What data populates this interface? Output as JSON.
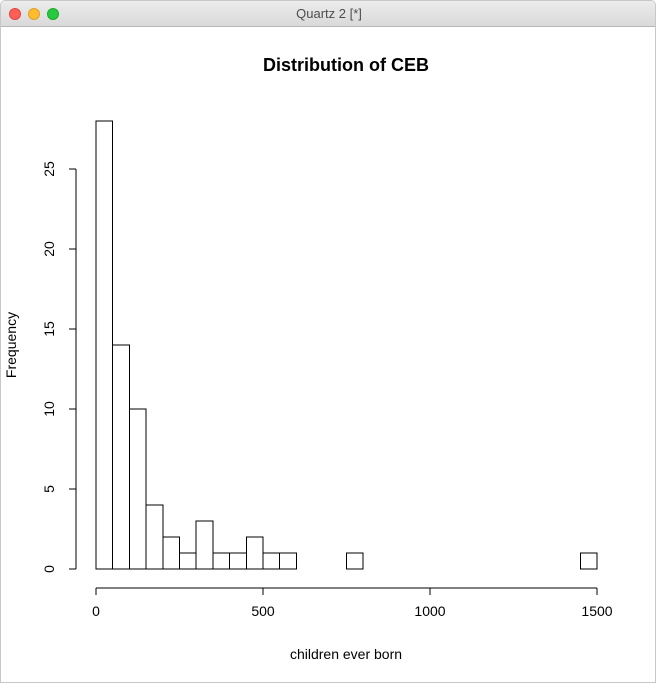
{
  "window": {
    "title": "Quartz 2 [*]"
  },
  "chart_data": {
    "type": "bar",
    "title": "Distribution of CEB",
    "xlabel": "children ever born",
    "ylabel": "Frequency",
    "bin_width": 50,
    "bins": [
      {
        "x0": 0,
        "x1": 50,
        "count": 28
      },
      {
        "x0": 50,
        "x1": 100,
        "count": 14
      },
      {
        "x0": 100,
        "x1": 150,
        "count": 10
      },
      {
        "x0": 150,
        "x1": 200,
        "count": 4
      },
      {
        "x0": 200,
        "x1": 250,
        "count": 2
      },
      {
        "x0": 250,
        "x1": 300,
        "count": 1
      },
      {
        "x0": 300,
        "x1": 350,
        "count": 3
      },
      {
        "x0": 350,
        "x1": 400,
        "count": 1
      },
      {
        "x0": 400,
        "x1": 450,
        "count": 1
      },
      {
        "x0": 450,
        "x1": 500,
        "count": 2
      },
      {
        "x0": 500,
        "x1": 550,
        "count": 1
      },
      {
        "x0": 550,
        "x1": 600,
        "count": 1
      },
      {
        "x0": 600,
        "x1": 650,
        "count": 0
      },
      {
        "x0": 650,
        "x1": 700,
        "count": 0
      },
      {
        "x0": 700,
        "x1": 750,
        "count": 0
      },
      {
        "x0": 750,
        "x1": 800,
        "count": 1
      },
      {
        "x0": 800,
        "x1": 850,
        "count": 0
      },
      {
        "x0": 850,
        "x1": 900,
        "count": 0
      },
      {
        "x0": 900,
        "x1": 950,
        "count": 0
      },
      {
        "x0": 950,
        "x1": 1000,
        "count": 0
      },
      {
        "x0": 1000,
        "x1": 1050,
        "count": 0
      },
      {
        "x0": 1050,
        "x1": 1100,
        "count": 0
      },
      {
        "x0": 1100,
        "x1": 1150,
        "count": 0
      },
      {
        "x0": 1150,
        "x1": 1200,
        "count": 0
      },
      {
        "x0": 1200,
        "x1": 1250,
        "count": 0
      },
      {
        "x0": 1250,
        "x1": 1300,
        "count": 0
      },
      {
        "x0": 1300,
        "x1": 1350,
        "count": 0
      },
      {
        "x0": 1350,
        "x1": 1400,
        "count": 0
      },
      {
        "x0": 1400,
        "x1": 1450,
        "count": 0
      },
      {
        "x0": 1450,
        "x1": 1500,
        "count": 1
      }
    ],
    "x_ticks": [
      0,
      500,
      1000,
      1500
    ],
    "y_ticks": [
      0,
      5,
      10,
      15,
      20,
      25
    ],
    "xlim": [
      0,
      1500
    ],
    "ylim": [
      0,
      28
    ],
    "grid": false,
    "legend": "none",
    "bar_fill": "#ffffff",
    "bar_stroke": "#000000"
  }
}
